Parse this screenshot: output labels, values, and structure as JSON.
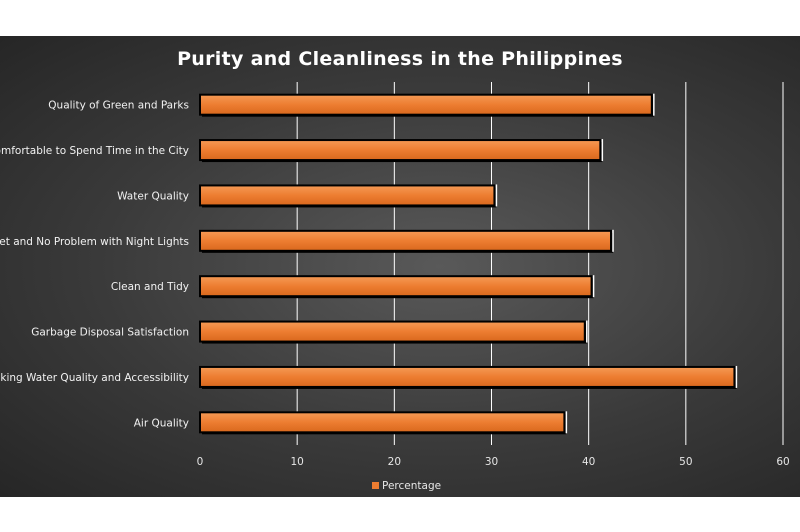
{
  "chart_data": {
    "type": "bar",
    "orientation": "horizontal",
    "title": "Purity and Cleanliness in the Philippines",
    "xlabel": "",
    "ylabel": "",
    "categories": [
      "Quality of Green and Parks",
      "Comfortable to Spend Time in the City",
      "Water Quality",
      "Quiet and No Problem with Night Lights",
      "Clean and Tidy",
      "Garbage Disposal Satisfaction",
      "Drinking Water Quality and Accessibility",
      "Air Quality"
    ],
    "series": [
      {
        "name": "Percentage",
        "values": [
          46.5,
          41.2,
          30.3,
          42.3,
          40.3,
          39.6,
          55.0,
          37.5
        ],
        "color": "#ed7d31"
      }
    ],
    "xlim": [
      0,
      60
    ],
    "xticks": [
      "0",
      "10",
      "20",
      "30",
      "40",
      "50",
      "60"
    ],
    "grid": "vertical",
    "legend": "bottom"
  },
  "colors": {
    "background": "#3a3a3a",
    "bar": "#ed7d31",
    "bar_outline": "#000000",
    "gridline": "#ffffff",
    "text": "#f2f2f2"
  }
}
